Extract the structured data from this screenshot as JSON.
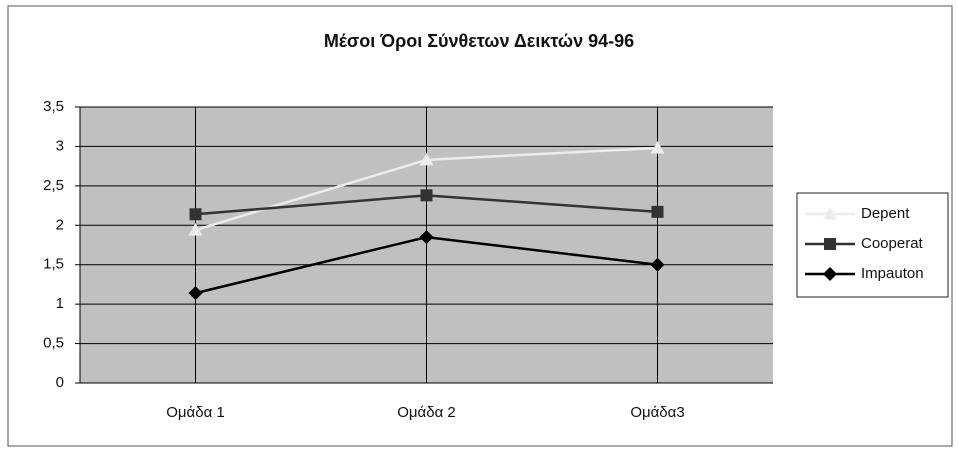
{
  "chart_data": {
    "type": "line",
    "title": "Μέσοι Όροι Σύνθετων Δεικτών 94-96",
    "categories": [
      "Ομάδα 1",
      "Ομάδα 2",
      "Ομάδα3"
    ],
    "series": [
      {
        "name": "Depent",
        "color": "#ececec",
        "marker": "triangle",
        "values": [
          1.94,
          2.83,
          2.98
        ]
      },
      {
        "name": "Cooperat",
        "color": "#333333",
        "marker": "square",
        "values": [
          2.14,
          2.38,
          2.17
        ]
      },
      {
        "name": "Impauton",
        "color": "#000000",
        "marker": "diamond",
        "values": [
          1.14,
          1.85,
          1.5
        ]
      }
    ],
    "ylim": [
      0,
      3.5
    ],
    "yticks": [
      0,
      {
        "value": 0.5,
        "label": "0,5"
      },
      1,
      {
        "value": 1.5,
        "label": "1,5"
      },
      2,
      {
        "value": 2.5,
        "label": "2,5"
      },
      3,
      {
        "value": 3.5,
        "label": "3,5"
      }
    ],
    "grid": true,
    "legend": "right"
  }
}
